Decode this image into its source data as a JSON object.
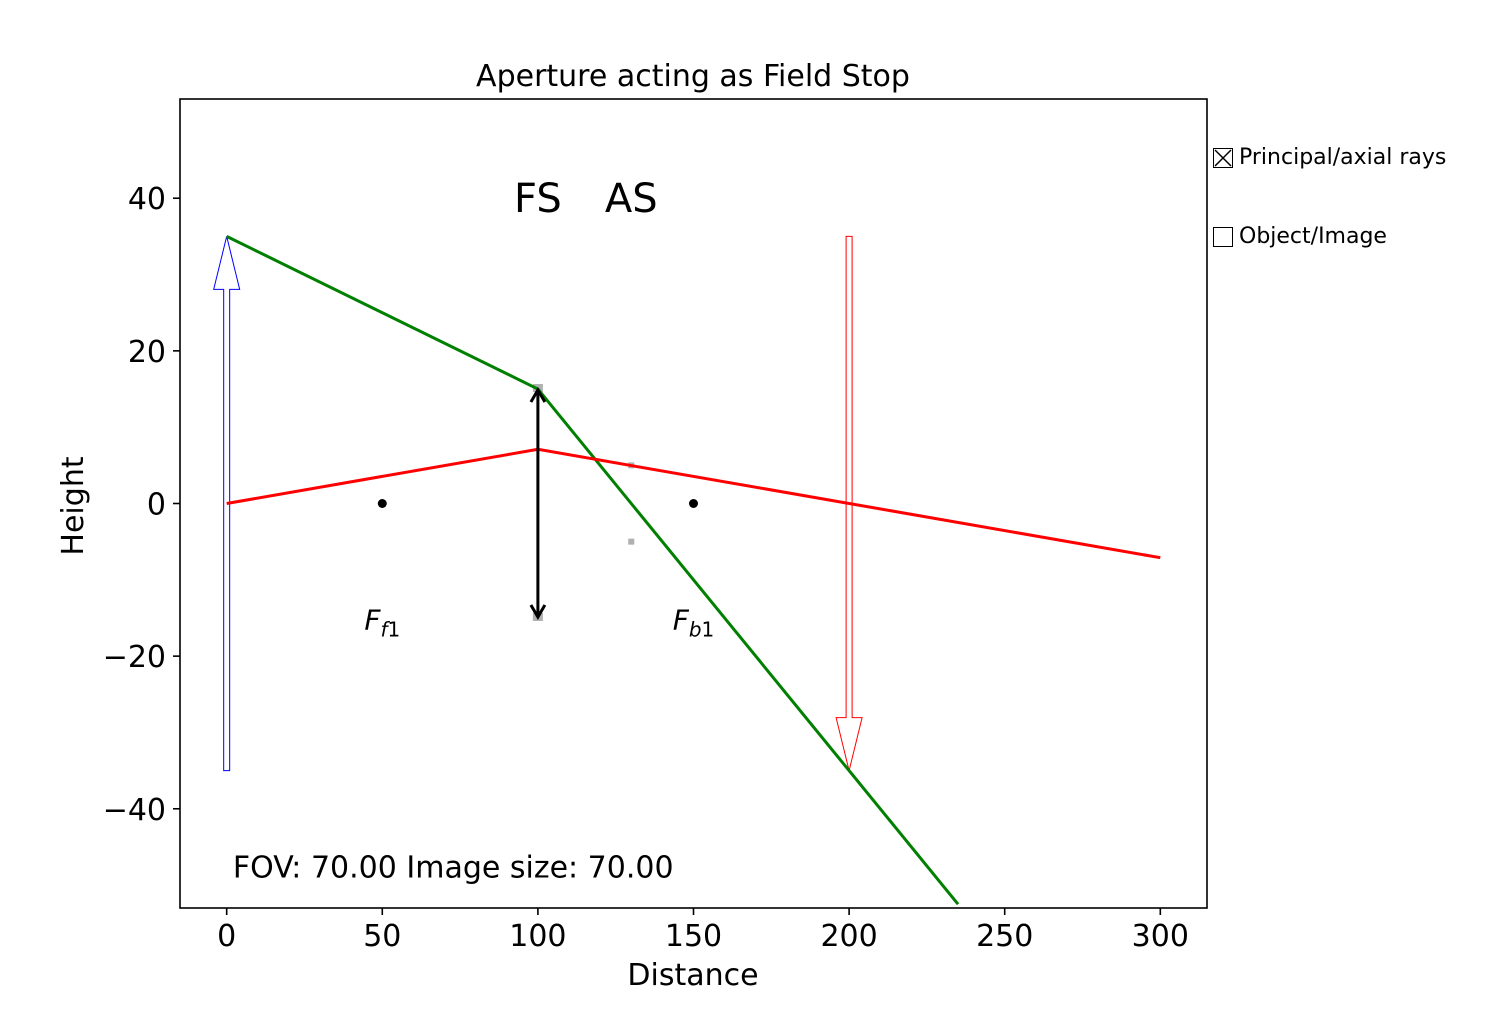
{
  "chart_data": {
    "type": "line",
    "title": "Aperture acting as Field Stop",
    "xlabel": "Distance",
    "ylabel": "Height",
    "xlim": [
      -15,
      315
    ],
    "ylim": [
      -53,
      53
    ],
    "xticks": [
      0,
      50,
      100,
      150,
      200,
      250,
      300
    ],
    "yticks": [
      -40,
      -20,
      0,
      20,
      40
    ],
    "xtick_labels": [
      "0",
      "50",
      "100",
      "150",
      "200",
      "250",
      "300"
    ],
    "ytick_labels": [
      "−40",
      "−20",
      "0",
      "20",
      "40"
    ],
    "grid": false,
    "series": [
      {
        "color": "#008000",
        "x": [
          0,
          100,
          235
        ],
        "y": [
          35,
          15,
          -52.5
        ]
      },
      {
        "color": "#ff0000",
        "x": [
          0,
          100,
          300
        ],
        "y": [
          0,
          7.1,
          -7.1
        ]
      }
    ],
    "object_arrow": {
      "x": 0,
      "y_from": -35,
      "y_to": 35,
      "color": "#0000ff"
    },
    "image_arrow": {
      "x": 200,
      "y_from": 35,
      "y_to": -35,
      "color": "#ff0000"
    },
    "aperture": {
      "x": 100,
      "y_from": -15,
      "y_to": 15,
      "color": "#000000"
    },
    "aperture_marks": [
      {
        "x": 100,
        "y": 15
      },
      {
        "x": 100,
        "y": -15
      },
      {
        "x": 130,
        "y": 5
      },
      {
        "x": 130,
        "y": -5
      }
    ],
    "focal_points": [
      {
        "x": 50,
        "y": 0,
        "label_main": "F",
        "label_sub": "f1",
        "label_y": -16.5
      },
      {
        "x": 150,
        "y": 0,
        "label_main": "F",
        "label_sub": "b1",
        "label_y": -16.5
      }
    ],
    "stop_labels": [
      {
        "text": "FS",
        "x": 100,
        "y": 40
      },
      {
        "text": "AS",
        "x": 130,
        "y": 40
      }
    ],
    "info_text": "FOV: 70.00 Image size: 70.00"
  },
  "controls": {
    "principal_label": "Principal/axial rays",
    "principal_checked": true,
    "object_label": "Object/Image",
    "object_checked": false
  }
}
